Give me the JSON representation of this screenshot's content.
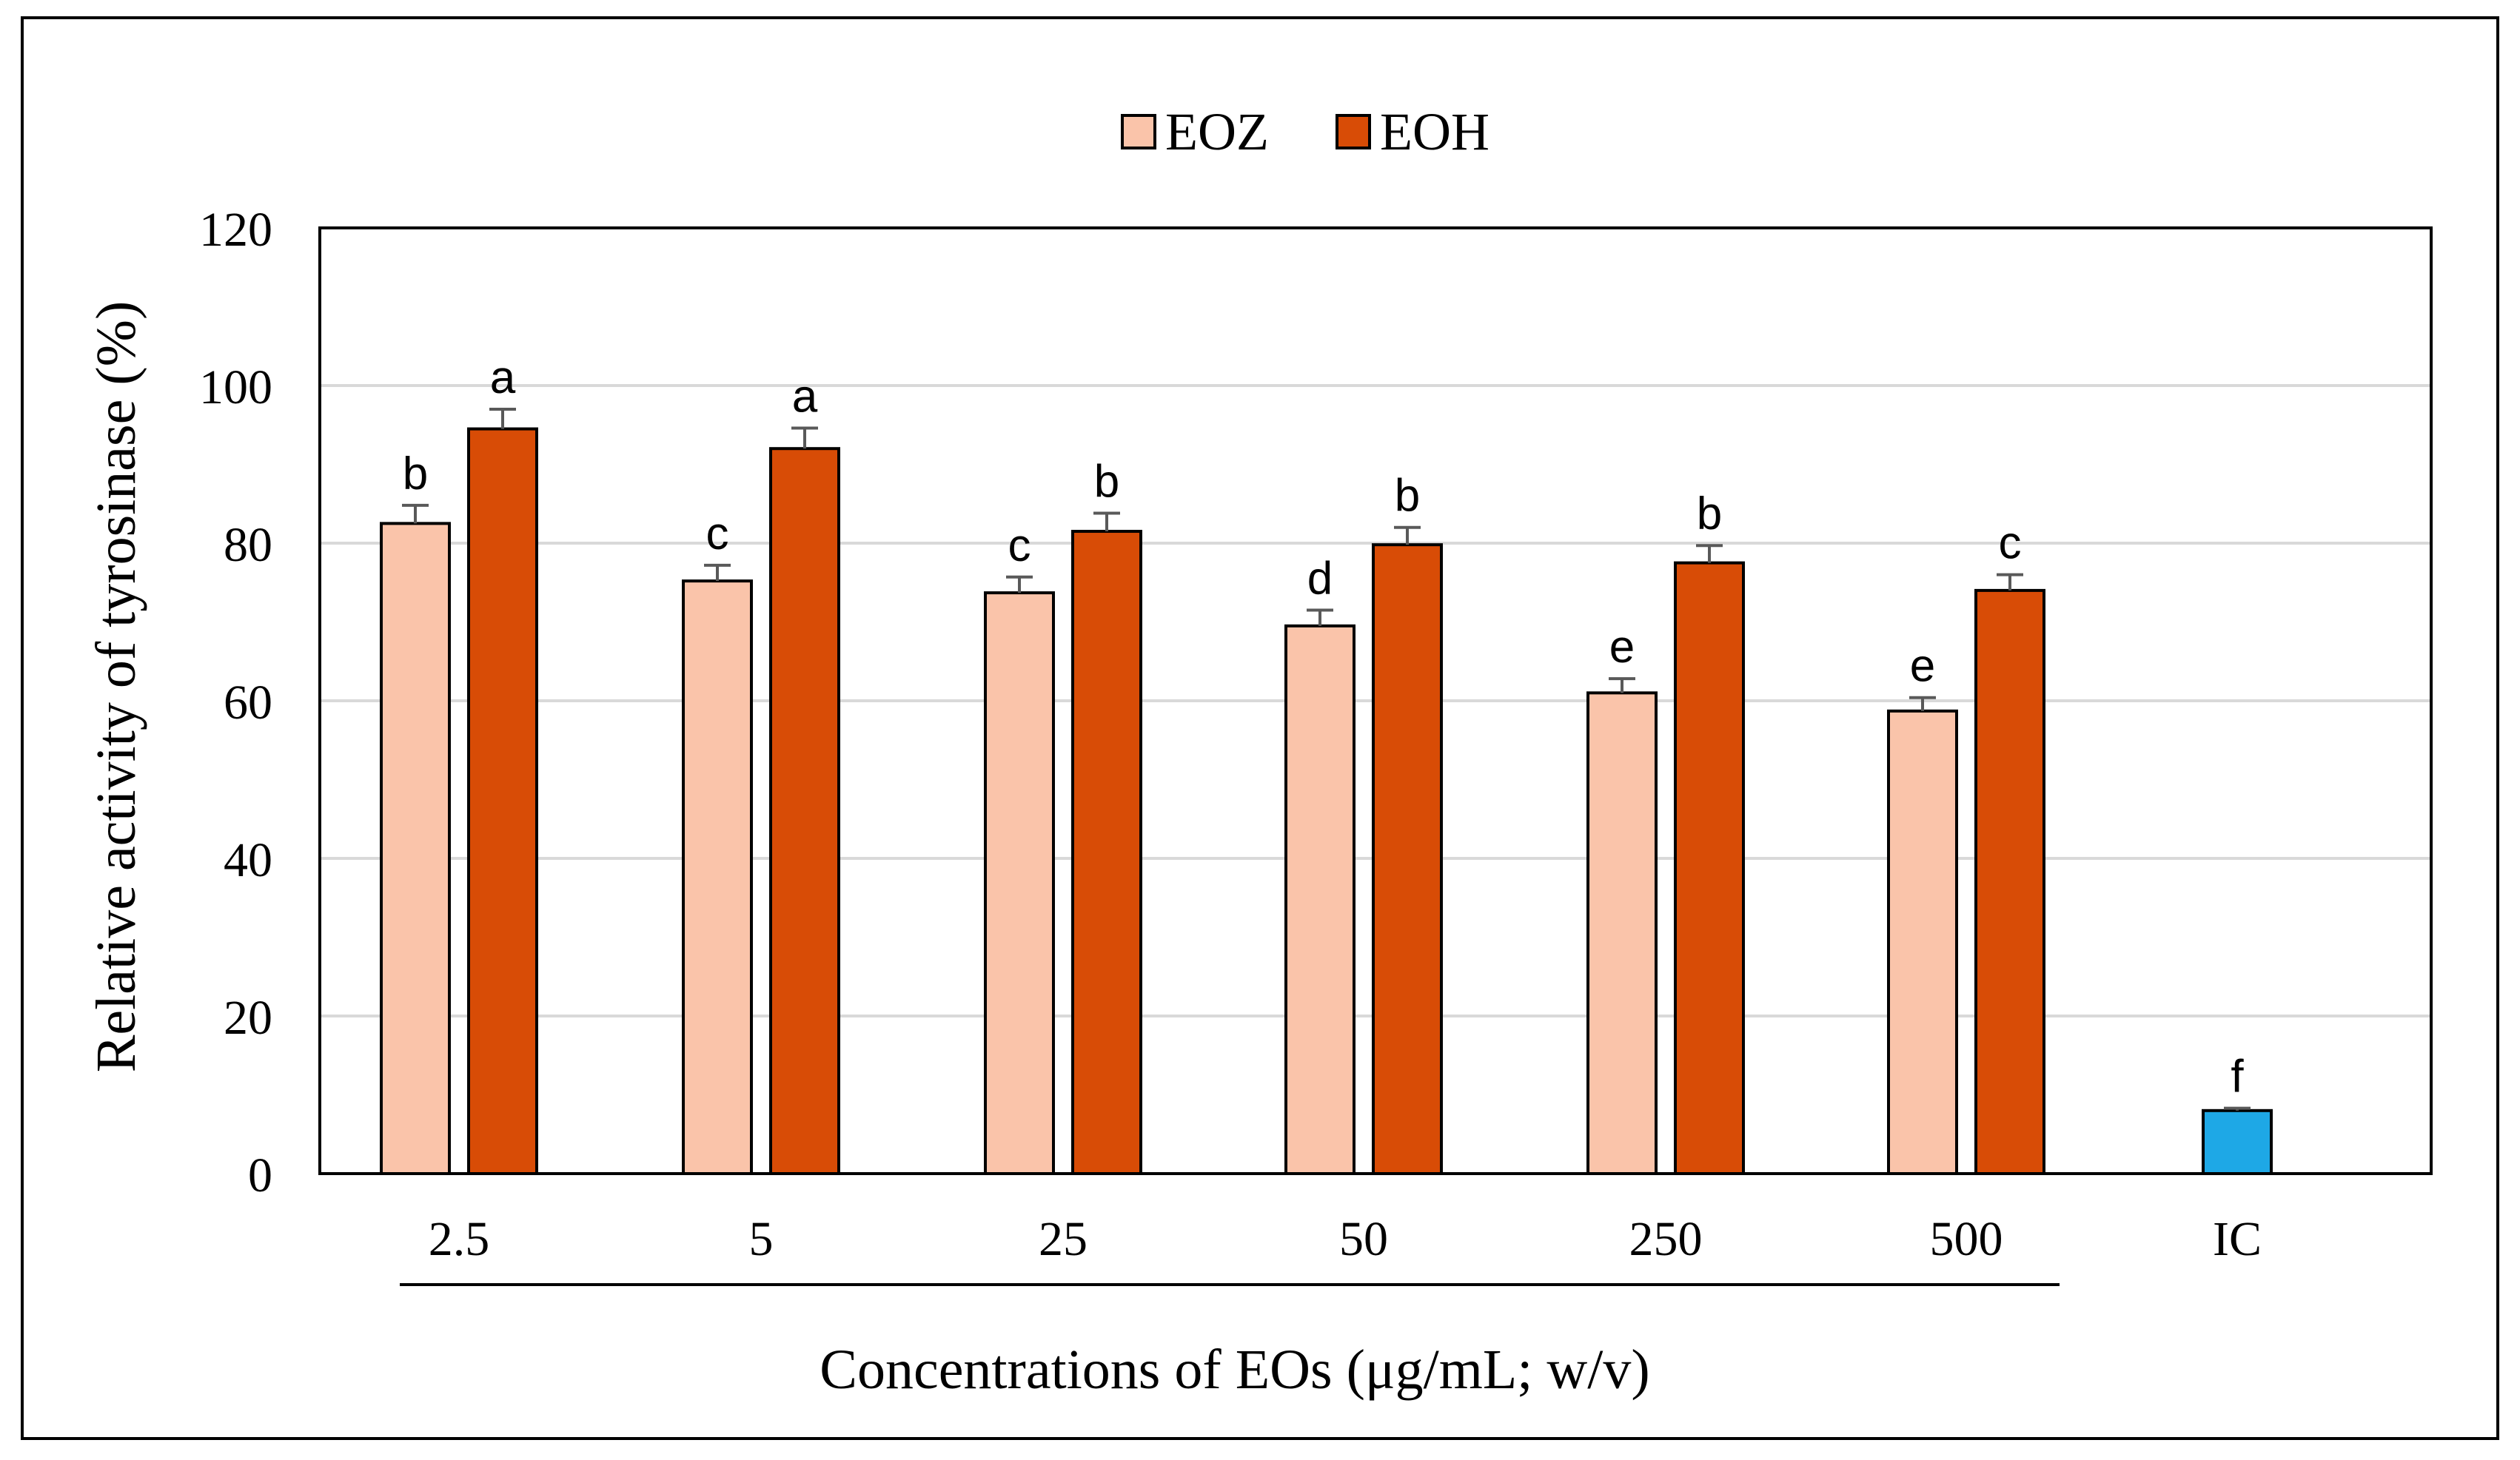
{
  "chart_data": {
    "type": "bar",
    "xlabel": "Concentrations of EOs (μg/mL; w/v)",
    "ylabel": "Relative activity of tyrosinase (%)",
    "ylim": [
      0,
      120
    ],
    "yticks": [
      "0",
      "20",
      "40",
      "60",
      "80",
      "100",
      "120"
    ],
    "grid": true,
    "legend_position": "top-center",
    "categories": [
      "2.5",
      "5",
      "25",
      "50",
      "250",
      "500",
      "IC"
    ],
    "series": [
      {
        "name": "EOZ",
        "color": "#FAC4AA",
        "values": [
          82.5,
          75.2,
          73.7,
          69.5,
          61.0,
          58.7,
          null
        ],
        "errors": [
          2.3,
          2.0,
          2.0,
          2.0,
          1.8,
          1.7,
          null
        ],
        "letters": [
          "b",
          "c",
          "c",
          "d",
          "e",
          "e",
          null
        ]
      },
      {
        "name": "EOH",
        "color": "#D84C06",
        "values": [
          94.5,
          92.0,
          81.5,
          79.8,
          77.5,
          74.0,
          null
        ],
        "errors": [
          2.5,
          2.6,
          2.3,
          2.2,
          2.2,
          2.0,
          null
        ],
        "letters": [
          "a",
          "a",
          "b",
          "b",
          "b",
          "c",
          null
        ]
      },
      {
        "name": "IC",
        "color": "#1EA8E6",
        "values": [
          null,
          null,
          null,
          null,
          null,
          null,
          8.0
        ],
        "errors": [
          null,
          null,
          null,
          null,
          null,
          null,
          0.3
        ],
        "letters": [
          null,
          null,
          null,
          null,
          null,
          null,
          "f"
        ]
      }
    ]
  }
}
